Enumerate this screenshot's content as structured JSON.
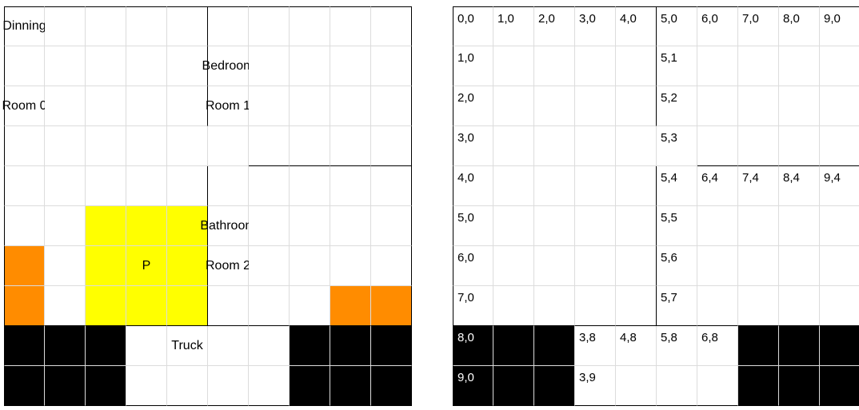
{
  "colors": {
    "wall": "#000000",
    "gridline": "#dcdcdc",
    "player": "#ffff00",
    "item": "#ff8c00",
    "blocked": "#000000",
    "floor": "#ffffff"
  },
  "floor_plan": {
    "labels": {
      "dinning": "Dinning",
      "room0": "Room 0",
      "bedroom": "Bedroom",
      "room1": "Room 1",
      "bathroom": "Bathroom",
      "room2": "Room 2",
      "player": "P",
      "truck": "Truck"
    },
    "player_cells": [
      [
        2,
        5
      ],
      [
        3,
        5
      ],
      [
        4,
        5
      ],
      [
        2,
        6
      ],
      [
        3,
        6
      ],
      [
        4,
        6
      ],
      [
        2,
        7
      ],
      [
        3,
        7
      ],
      [
        4,
        7
      ]
    ],
    "item_cells": [
      [
        0,
        6
      ],
      [
        0,
        7
      ],
      [
        8,
        7
      ],
      [
        9,
        7
      ]
    ],
    "blocked_cells": [
      [
        0,
        8
      ],
      [
        1,
        8
      ],
      [
        2,
        8
      ],
      [
        0,
        9
      ],
      [
        1,
        9
      ],
      [
        2,
        9
      ],
      [
        7,
        8
      ],
      [
        8,
        8
      ],
      [
        9,
        8
      ],
      [
        7,
        9
      ],
      [
        8,
        9
      ],
      [
        9,
        9
      ]
    ]
  },
  "coordinate_grid": {
    "labels": {
      "0,0": "0,0",
      "1,0": "1,0",
      "2,0": "2,0",
      "3,0": "3,0",
      "4,0": "4,0",
      "5,0": "5,0",
      "6,0": "6,0",
      "7,0": "7,0",
      "8,0": "8,0",
      "9,0": "9,0",
      "0,1": "1,0",
      "5,1": "5,1",
      "0,2": "2,0",
      "5,2": "5,2",
      "0,3": "3,0",
      "5,3": "5,3",
      "0,4": "4,0",
      "5,4": "5,4",
      "6,4": "6,4",
      "7,4": "7,4",
      "8,4": "8,4",
      "9,4": "9,4",
      "0,5": "5,0",
      "5,5": "5,5",
      "0,6": "6,0",
      "5,6": "5,6",
      "0,7": "7,0",
      "5,7": "5,7",
      "0,8": "8,0",
      "3,8": "3,8",
      "4,8": "4,8",
      "5,8": "5,8",
      "6,8": "6,8",
      "0,9": "9,0",
      "3,9": "3,9"
    },
    "blocked_cells": [
      [
        0,
        8
      ],
      [
        1,
        8
      ],
      [
        2,
        8
      ],
      [
        0,
        9
      ],
      [
        1,
        9
      ],
      [
        2,
        9
      ],
      [
        7,
        8
      ],
      [
        8,
        8
      ],
      [
        9,
        8
      ],
      [
        7,
        9
      ],
      [
        8,
        9
      ],
      [
        9,
        9
      ]
    ]
  }
}
